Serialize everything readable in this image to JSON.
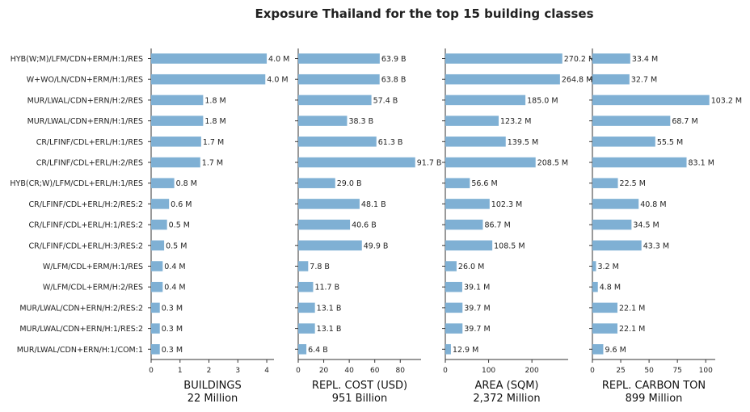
{
  "chart_data": {
    "type": "bar",
    "orientation": "horizontal",
    "title": "Exposure Thailand for the top 15 building classes",
    "categories": [
      "HYB(W;M)/LFM/CDN+ERM/H:1/RES",
      "W+WO/LN/CDN+ERM/H:1/RES",
      "MUR/LWAL/CDN+ERN/H:2/RES",
      "MUR/LWAL/CDN+ERN/H:1/RES",
      "CR/LFINF/CDL+ERL/H:1/RES",
      "CR/LFINF/CDL+ERL/H:2/RES",
      "HYB(CR;W)/LFM/CDL+ERL/H:1/RES",
      "CR/LFINF/CDL+ERL/H:2/RES:2",
      "CR/LFINF/CDL+ERL/H:1/RES:2",
      "CR/LFINF/CDL+ERL/H:3/RES:2",
      "W/LFM/CDL+ERM/H:1/RES",
      "W/LFM/CDL+ERM/H:2/RES",
      "MUR/LWAL/CDN+ERN/H:2/RES:2",
      "MUR/LWAL/CDN+ERN/H:1/RES:2",
      "MUR/LWAL/CDN+ERN/H:1/COM:1"
    ],
    "panels": [
      {
        "xlabel": "BUILDINGS",
        "total": "22 Million",
        "xlim": [
          0,
          4.25
        ],
        "ticks": [
          0,
          1,
          2,
          3,
          4
        ],
        "unit": "M",
        "values": [
          4.0,
          3.95,
          1.8,
          1.8,
          1.73,
          1.7,
          0.8,
          0.62,
          0.55,
          0.45,
          0.4,
          0.4,
          0.3,
          0.3,
          0.3
        ],
        "labels": [
          "4.0 M",
          "4.0 M",
          "1.8 M",
          "1.8 M",
          "1.7 M",
          "1.7 M",
          "0.8 M",
          "0.6 M",
          "0.5 M",
          "0.5 M",
          "0.4 M",
          "0.4 M",
          "0.3 M",
          "0.3 M",
          "0.3 M"
        ]
      },
      {
        "xlabel": "REPL. COST (USD)",
        "total": "951 Billion",
        "xlim": [
          0,
          96.3
        ],
        "ticks": [
          0,
          20,
          40,
          60,
          80
        ],
        "unit": "B",
        "values": [
          63.9,
          63.8,
          57.4,
          38.3,
          61.3,
          91.7,
          29.0,
          48.1,
          40.6,
          49.9,
          7.8,
          11.7,
          13.1,
          13.1,
          6.4
        ],
        "labels": [
          "63.9 B",
          "63.8 B",
          "57.4 B",
          "38.3 B",
          "61.3 B",
          "91.7 B",
          "29.0 B",
          "48.1 B",
          "40.6 B",
          "49.9 B",
          "7.8 B",
          "11.7 B",
          "13.1 B",
          "13.1 B",
          "6.4 B"
        ]
      },
      {
        "xlabel": "AREA (SQM)",
        "total": "2,372 Million",
        "xlim": [
          0,
          283.7
        ],
        "ticks": [
          0,
          100,
          200
        ],
        "unit": "M",
        "values": [
          270.2,
          264.8,
          185.0,
          123.2,
          139.5,
          208.5,
          56.6,
          102.3,
          86.7,
          108.5,
          26.0,
          39.1,
          39.7,
          39.7,
          12.9
        ],
        "labels": [
          "270.2 M",
          "264.8 M",
          "185.0 M",
          "123.2 M",
          "139.5 M",
          "208.5 M",
          "56.6 M",
          "102.3 M",
          "86.7 M",
          "108.5 M",
          "26.0 M",
          "39.1 M",
          "39.7 M",
          "39.7 M",
          "12.9 M"
        ]
      },
      {
        "xlabel": "REPL. CARBON TON",
        "total": "899 Million",
        "xlim": [
          0,
          108.4
        ],
        "ticks": [
          0,
          25,
          50,
          75,
          100
        ],
        "unit": "M",
        "values": [
          33.4,
          32.7,
          103.2,
          68.7,
          55.5,
          83.1,
          22.5,
          40.8,
          34.5,
          43.3,
          3.2,
          4.8,
          22.1,
          22.1,
          9.6
        ],
        "labels": [
          "33.4 M",
          "32.7 M",
          "103.2 M",
          "68.7 M",
          "55.5 M",
          "83.1 M",
          "22.5 M",
          "40.8 M",
          "34.5 M",
          "43.3 M",
          "3.2 M",
          "4.8 M",
          "22.1 M",
          "22.1 M",
          "9.6 M"
        ]
      }
    ],
    "colors": {
      "bar": "#7fb0d4",
      "axis": "#333333",
      "text": "#222222"
    },
    "grid": false
  }
}
